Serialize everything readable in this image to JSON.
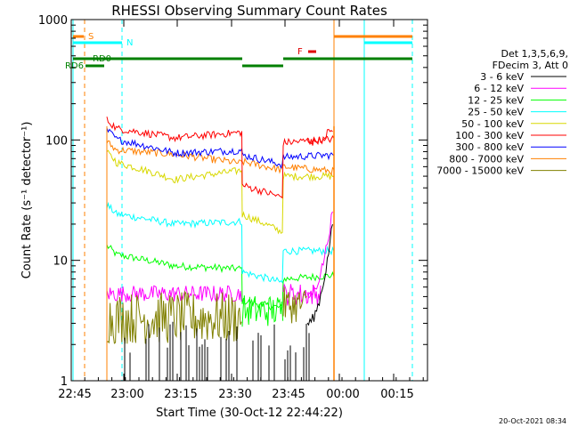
{
  "chart_data": {
    "type": "line",
    "title": "RHESSI Observing Summary Count Rates",
    "xlabel": "Start Time (30-Oct-12 22:44:22)",
    "ylabel": "Count Rate (s⁻¹ detector⁻¹)",
    "yscale": "log",
    "ylim": [
      1,
      1000
    ],
    "x_tick_labels": [
      "22:45",
      "23:00",
      "23:15",
      "23:30",
      "23:45",
      "00:00",
      "00:15"
    ],
    "y_tick_labels": [
      "1",
      "10",
      "100",
      "1000"
    ],
    "legend_header": [
      "Det 1,3,5,6,9,",
      "FDecim 3, Att 0"
    ],
    "legend_placement": "right",
    "footer_date": "20-Oct-2021 08:34",
    "flags": [
      {
        "label": "S",
        "color": "#ff8000"
      },
      {
        "label": "N",
        "color": "#00ffff"
      },
      {
        "label": "F",
        "color": "#e00000"
      },
      {
        "label": "RD0",
        "color": "#008000"
      },
      {
        "label": "RD6",
        "color": "#008000"
      }
    ],
    "series": [
      {
        "name": "3 - 6 keV",
        "color": "#000000"
      },
      {
        "name": "6 - 12 keV",
        "color": "#ff00ff"
      },
      {
        "name": "12 - 25 keV",
        "color": "#00ff00"
      },
      {
        "name": "25 - 50 keV",
        "color": "#00ffff"
      },
      {
        "name": "50 - 100 keV",
        "color": "#d8d800"
      },
      {
        "name": "100 - 300 keV",
        "color": "#ff0000"
      },
      {
        "name": "300 - 800 keV",
        "color": "#0000ff"
      },
      {
        "name": "800 - 7000 keV",
        "color": "#ff8000"
      },
      {
        "name": "7000 - 15000 keV",
        "color": "#808000"
      }
    ]
  }
}
